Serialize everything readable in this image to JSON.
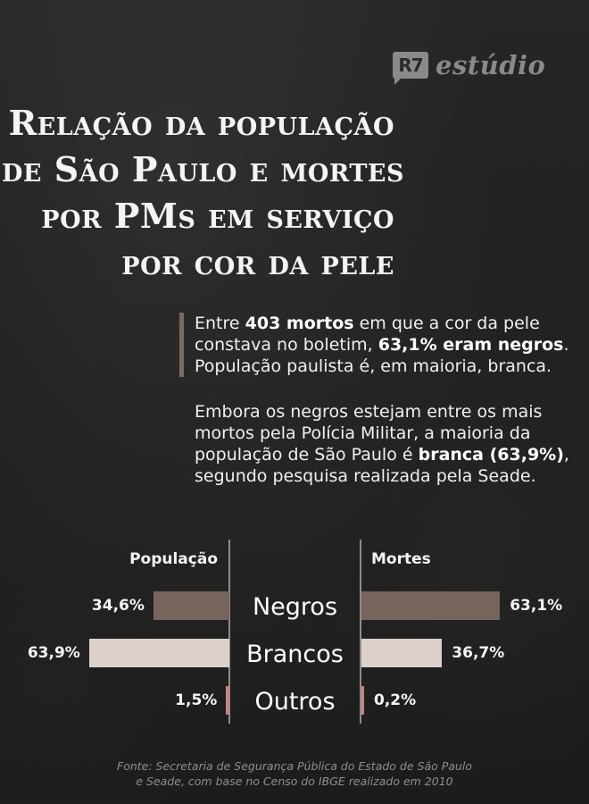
{
  "brand": {
    "badge": "R7",
    "name": "estúdio"
  },
  "title": {
    "lines": [
      "Relação da população",
      "de São Paulo e mortes",
      "por PMs em serviço",
      "por cor da pele"
    ]
  },
  "lead": {
    "t1": "Entre ",
    "b1": "403 mortos",
    "t2": " em que a cor da pele constava no boletim, ",
    "b2": "63,1% eram negros",
    "t3": ". População paulista é, em maioria, branca."
  },
  "body": {
    "t1": "Embora os negros estejam entre os mais mortos pela Polícia Militar, a maioria da população de São Paulo é ",
    "b1": "branca (63,9%)",
    "t2": ", segundo pesquisa realizada pela Seade."
  },
  "colors": {
    "negros": "#76655a",
    "brancos": "#ddd0cb",
    "outros": "#c4867f",
    "accent_bar": "#7b6a5e",
    "axis": "#8c8c8c"
  },
  "chart_data": {
    "type": "bar",
    "orientation": "horizontal-butterfly",
    "title": "Relação da população de São Paulo e mortes por PMs em serviço por cor da pele",
    "categories": [
      "Negros",
      "Brancos",
      "Outros"
    ],
    "series": [
      {
        "name": "População",
        "side": "left",
        "values": [
          34.6,
          63.9,
          1.5
        ],
        "labels": [
          "34,6%",
          "63,9%",
          "1,5%"
        ]
      },
      {
        "name": "Mortes",
        "side": "right",
        "values": [
          63.1,
          36.7,
          0.2
        ],
        "labels": [
          "63,1%",
          "36,7%",
          "0,2%"
        ]
      }
    ],
    "unit": "%",
    "xlim": [
      0,
      100
    ],
    "grid": false,
    "legend": "column headers"
  },
  "source": {
    "line1": "Fonte: Secretaria de Segurança Pública do Estado de São Paulo",
    "line2": "e Seade, com base no Censo do IBGE realizado em 2010"
  }
}
